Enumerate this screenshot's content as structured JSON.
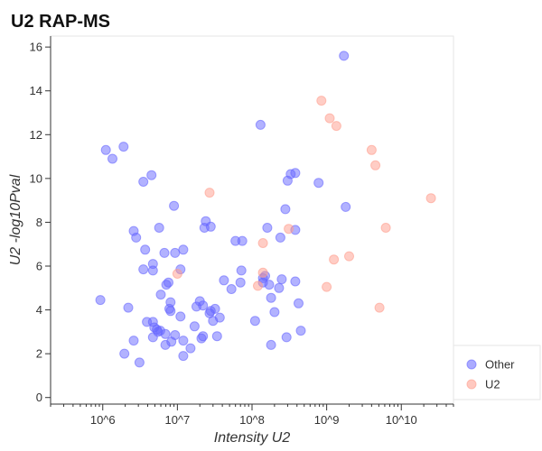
{
  "chart_data": {
    "type": "scatter",
    "title": "U2 RAP-MS",
    "xlabel": "Intensity U2",
    "ylabel": "U2 -log10Pval",
    "x_scale": "log",
    "xlim": [
      200000,
      50000000000
    ],
    "ylim": [
      -0.3,
      16.5
    ],
    "x_ticks": [
      {
        "value": 1000000,
        "label": "10^6"
      },
      {
        "value": 10000000,
        "label": "10^7"
      },
      {
        "value": 100000000,
        "label": "10^8"
      },
      {
        "value": 1000000000,
        "label": "10^9"
      },
      {
        "value": 10000000000,
        "label": "10^10"
      }
    ],
    "y_ticks": [
      0,
      2,
      4,
      6,
      8,
      10,
      12,
      14,
      16
    ],
    "grid": false,
    "legend_position": "bottom-right",
    "series": [
      {
        "name": "Other",
        "color": "#6666ff",
        "points": [
          [
            930000,
            4.45
          ],
          [
            1100000,
            11.3
          ],
          [
            1350000,
            10.9
          ],
          [
            1900000,
            11.45
          ],
          [
            1950000,
            2.0
          ],
          [
            2200000,
            4.1
          ],
          [
            2600000,
            7.6
          ],
          [
            2600000,
            2.6
          ],
          [
            2800000,
            7.3
          ],
          [
            3100000,
            1.6
          ],
          [
            3500000,
            9.85
          ],
          [
            3500000,
            5.85
          ],
          [
            3700000,
            6.75
          ],
          [
            3900000,
            3.45
          ],
          [
            4500000,
            10.15
          ],
          [
            4700000,
            5.8
          ],
          [
            4700000,
            6.1
          ],
          [
            4700000,
            3.45
          ],
          [
            4700000,
            2.75
          ],
          [
            4900000,
            3.2
          ],
          [
            5300000,
            3.1
          ],
          [
            5500000,
            3.0
          ],
          [
            5700000,
            7.75
          ],
          [
            5900000,
            3.05
          ],
          [
            6000000,
            4.7
          ],
          [
            6700000,
            6.6
          ],
          [
            6900000,
            2.9
          ],
          [
            6900000,
            2.4
          ],
          [
            7100000,
            5.15
          ],
          [
            7600000,
            5.25
          ],
          [
            7800000,
            4.05
          ],
          [
            8100000,
            4.35
          ],
          [
            8100000,
            3.95
          ],
          [
            8300000,
            2.55
          ],
          [
            9000000,
            8.75
          ],
          [
            9300000,
            6.6
          ],
          [
            9300000,
            2.85
          ],
          [
            11000000,
            5.85
          ],
          [
            11000000,
            3.7
          ],
          [
            12000000,
            6.75
          ],
          [
            12000000,
            1.9
          ],
          [
            12000000,
            2.6
          ],
          [
            15000000,
            2.25
          ],
          [
            17000000,
            3.25
          ],
          [
            18000000,
            4.15
          ],
          [
            20000000,
            4.4
          ],
          [
            21000000,
            2.7
          ],
          [
            22000000,
            2.8
          ],
          [
            22000000,
            4.2
          ],
          [
            23000000,
            7.75
          ],
          [
            24000000,
            8.05
          ],
          [
            27000000,
            3.85
          ],
          [
            28000000,
            3.95
          ],
          [
            28000000,
            7.8
          ],
          [
            30000000,
            3.5
          ],
          [
            32000000,
            4.05
          ],
          [
            34000000,
            2.8
          ],
          [
            37000000,
            3.65
          ],
          [
            42000000,
            5.35
          ],
          [
            53000000,
            4.95
          ],
          [
            60000000,
            7.15
          ],
          [
            70000000,
            5.25
          ],
          [
            72000000,
            5.8
          ],
          [
            74000000,
            7.15
          ],
          [
            110000000,
            3.5
          ],
          [
            130000000,
            12.45
          ],
          [
            140000000,
            5.45
          ],
          [
            140000000,
            5.25
          ],
          [
            150000000,
            5.55
          ],
          [
            160000000,
            7.75
          ],
          [
            170000000,
            5.15
          ],
          [
            180000000,
            4.55
          ],
          [
            180000000,
            2.4
          ],
          [
            200000000,
            3.9
          ],
          [
            230000000,
            5.0
          ],
          [
            240000000,
            7.3
          ],
          [
            250000000,
            5.4
          ],
          [
            280000000,
            8.6
          ],
          [
            290000000,
            2.75
          ],
          [
            300000000,
            9.9
          ],
          [
            330000000,
            10.2
          ],
          [
            380000000,
            10.25
          ],
          [
            380000000,
            5.3
          ],
          [
            380000000,
            7.65
          ],
          [
            420000000,
            4.3
          ],
          [
            450000000,
            3.05
          ],
          [
            780000000,
            9.8
          ],
          [
            1700000000,
            15.6
          ],
          [
            1800000000,
            8.7
          ]
        ]
      },
      {
        "name": "U2",
        "color": "#ff9c8c",
        "points": [
          [
            10000000,
            5.65
          ],
          [
            27000000,
            9.35
          ],
          [
            120000000,
            5.1
          ],
          [
            140000000,
            7.05
          ],
          [
            140000000,
            5.7
          ],
          [
            310000000,
            7.7
          ],
          [
            850000000,
            13.55
          ],
          [
            1000000000,
            5.05
          ],
          [
            1100000000,
            12.75
          ],
          [
            1250000000,
            6.3
          ],
          [
            1350000000,
            12.4
          ],
          [
            2000000000,
            6.45
          ],
          [
            4000000000,
            11.3
          ],
          [
            4500000000,
            10.6
          ],
          [
            5100000000,
            4.1
          ],
          [
            6200000000,
            7.75
          ],
          [
            25000000000,
            9.1
          ]
        ]
      }
    ]
  }
}
